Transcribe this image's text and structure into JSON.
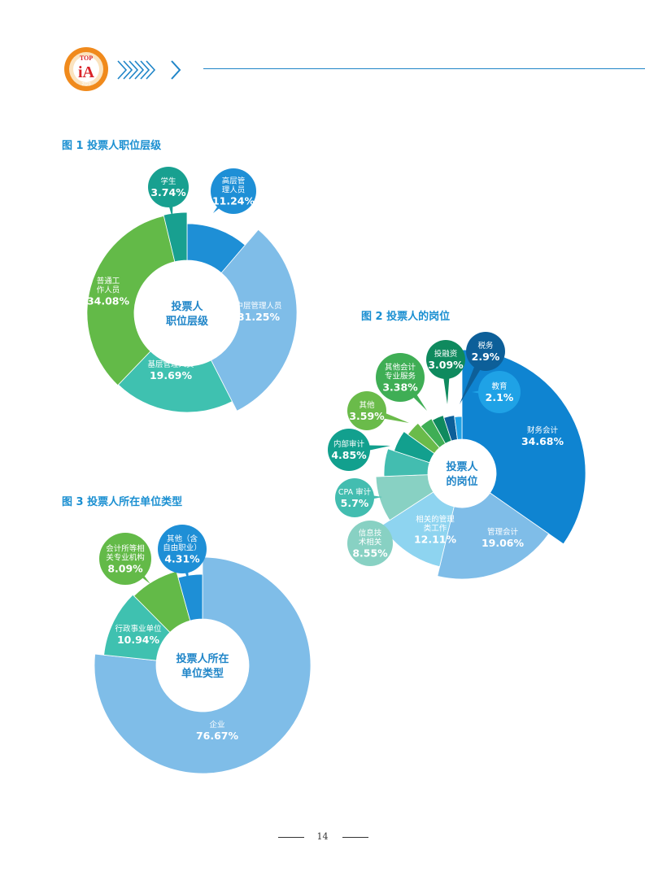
{
  "header": {
    "logo_text": "TOP iA 2023",
    "logo_colors": {
      "outer": "#f08a1c",
      "inner": "#d9242a",
      "ring": "#f6c76d"
    },
    "accent": "#1f85c8",
    "chevron_icon": "double-chevron-right-icon"
  },
  "footer": {
    "page_number": "14"
  },
  "chart_data": [
    {
      "id": "fig1",
      "type": "pie",
      "title": "图 1 投票人职位层级",
      "center_label": [
        "投票人",
        "职位层级"
      ],
      "slices": [
        {
          "name": "高层管理人员",
          "label_lines": [
            "高层管",
            "理人员"
          ],
          "value": 11.24,
          "value_text": "11.24%",
          "color": "#1e8fd6"
        },
        {
          "name": "中层管理人员",
          "label_lines": [
            "中层管理人员"
          ],
          "value": 31.25,
          "value_text": "31.25%",
          "color": "#7fbde8"
        },
        {
          "name": "基层管理人员",
          "label_lines": [
            "基层管理人员"
          ],
          "value": 19.69,
          "value_text": "19.69%",
          "color": "#3fc1b0"
        },
        {
          "name": "普通工作人员",
          "label_lines": [
            "普通工",
            "作人员"
          ],
          "value": 34.08,
          "value_text": "34.08%",
          "color": "#63ba48"
        },
        {
          "name": "学生",
          "label_lines": [
            "学生"
          ],
          "value": 3.74,
          "value_text": "3.74%",
          "color": "#18a090"
        }
      ]
    },
    {
      "id": "fig2",
      "type": "pie",
      "title": "图 2 投票人的岗位",
      "center_label": [
        "投票人",
        "的岗位"
      ],
      "slices": [
        {
          "name": "财务会计",
          "label_lines": [
            "财务会计"
          ],
          "value": 34.68,
          "value_text": "34.68%",
          "color": "#0f84d1"
        },
        {
          "name": "管理会计",
          "label_lines": [
            "管理会计"
          ],
          "value": 19.06,
          "value_text": "19.06%",
          "color": "#7fbde8"
        },
        {
          "name": "相关的管理类工作",
          "label_lines": [
            "相关的管理",
            "类工作"
          ],
          "value": 12.11,
          "value_text": "12.11%",
          "color": "#8ed4f0"
        },
        {
          "name": "信息技术相关",
          "label_lines": [
            "信息技",
            "术相关"
          ],
          "value": 8.55,
          "value_text": "8.55%",
          "color": "#88d1c3"
        },
        {
          "name": "CPA审计",
          "label_lines": [
            "CPA 审计"
          ],
          "value": 5.7,
          "value_text": "5.7%",
          "color": "#43bdb0"
        },
        {
          "name": "内部审计",
          "label_lines": [
            "内部审计"
          ],
          "value": 4.85,
          "value_text": "4.85%",
          "color": "#12a08e"
        },
        {
          "name": "其他",
          "label_lines": [
            "其他"
          ],
          "value": 3.59,
          "value_text": "3.59%",
          "color": "#6abb4a"
        },
        {
          "name": "其他会计专业服务",
          "label_lines": [
            "其他会计",
            "专业服务"
          ],
          "value": 3.38,
          "value_text": "3.38%",
          "color": "#3fae55"
        },
        {
          "name": "投融资",
          "label_lines": [
            "投融资"
          ],
          "value": 3.09,
          "value_text": "3.09%",
          "color": "#0f8a5e"
        },
        {
          "name": "税务",
          "label_lines": [
            "税务"
          ],
          "value": 2.9,
          "value_text": "2.9%",
          "color": "#0d5f99"
        },
        {
          "name": "教育",
          "label_lines": [
            "教育"
          ],
          "value": 2.1,
          "value_text": "2.1%",
          "color": "#1fa2e6"
        }
      ]
    },
    {
      "id": "fig3",
      "type": "pie",
      "title": "图 3 投票人所在单位类型",
      "center_label": [
        "投票人所在",
        "单位类型"
      ],
      "slices": [
        {
          "name": "企业",
          "label_lines": [
            "企业"
          ],
          "value": 76.67,
          "value_text": "76.67%",
          "color": "#7fbde8"
        },
        {
          "name": "行政事业单位",
          "label_lines": [
            "行政事业单位"
          ],
          "value": 10.94,
          "value_text": "10.94%",
          "color": "#3fc1b0"
        },
        {
          "name": "会计所等相关专业机构",
          "label_lines": [
            "会计所等相",
            "关专业机构"
          ],
          "value": 8.09,
          "value_text": "8.09%",
          "color": "#63ba48"
        },
        {
          "name": "其他（含自由职业）",
          "label_lines": [
            "其他（含",
            "自由职业）"
          ],
          "value": 4.31,
          "value_text": "4.31%",
          "color": "#1e8fd6"
        }
      ]
    }
  ]
}
